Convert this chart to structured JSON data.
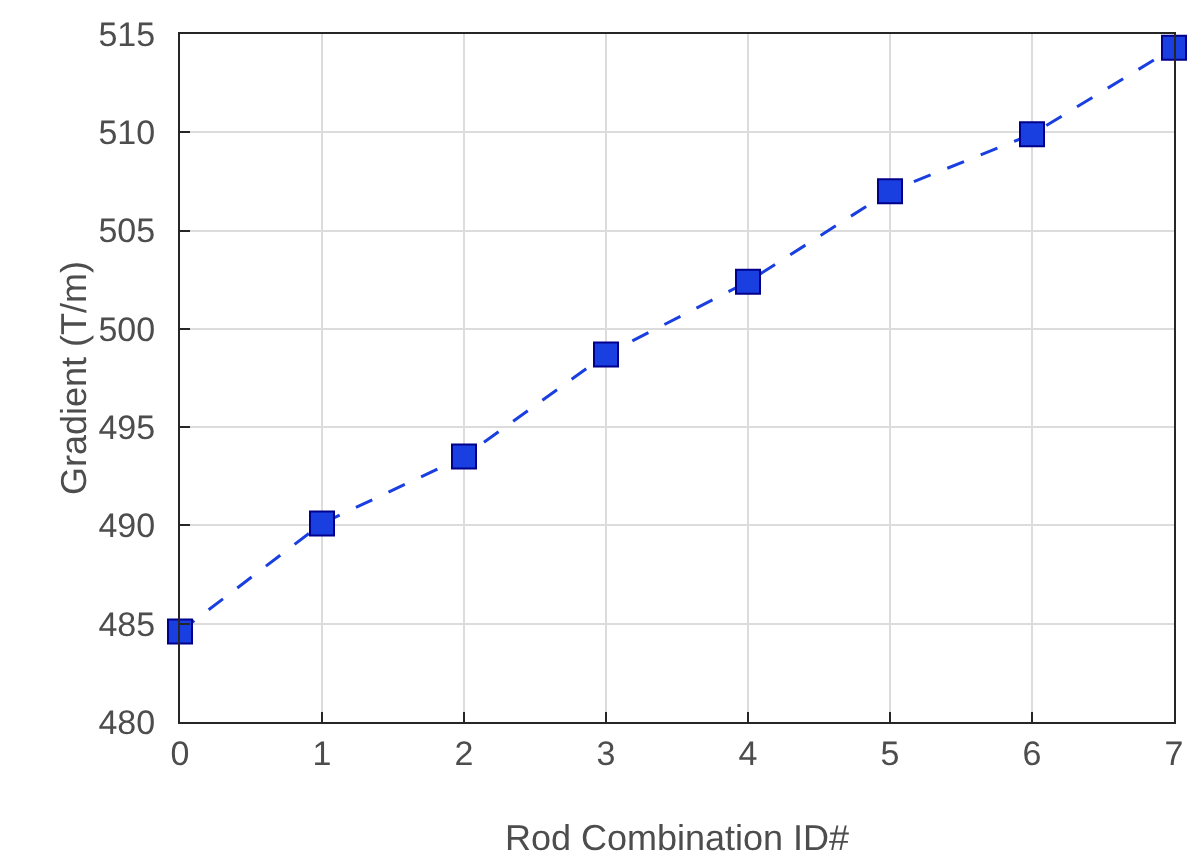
{
  "chart_data": {
    "type": "line",
    "xlabel": "Rod Combination ID#",
    "ylabel": "Gradient (T/m)",
    "x": [
      0,
      1,
      2,
      3,
      4,
      5,
      6,
      7
    ],
    "series": [
      {
        "color": "#1a3fe0",
        "values": [
          484.6,
          490.1,
          493.5,
          498.7,
          502.4,
          507.0,
          509.9,
          514.3
        ]
      }
    ],
    "xlim": [
      0,
      7
    ],
    "xticks": [
      0,
      1,
      2,
      3,
      4,
      5,
      6,
      7
    ],
    "ylim": [
      480,
      515
    ],
    "yticks": [
      480,
      485,
      490,
      495,
      500,
      505,
      510,
      515
    ],
    "grid": true,
    "marker": "square",
    "line_style": "dashed"
  }
}
